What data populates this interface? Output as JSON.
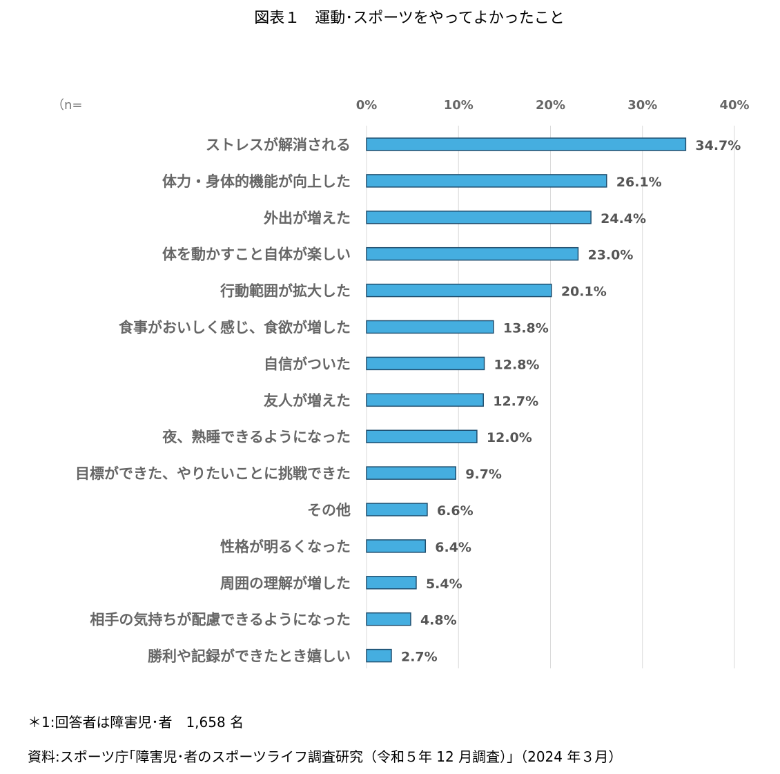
{
  "title": "図表１　運動･スポーツをやってよかったこと",
  "footnote": "＊1:回答者は障害児･者　1,658 名",
  "source": "資料:スポーツ庁｢障害児･者のスポーツライフ調査研究（令和５年 12 月調査）｣（2024 年３月）",
  "chart_data": {
    "type": "bar",
    "orientation": "horizontal",
    "n_label": "（n=",
    "xlim": [
      0,
      40
    ],
    "xticks": [
      "0%",
      "10%",
      "20%",
      "30%",
      "40%"
    ],
    "grid": true,
    "bar_color": "#45AEE0",
    "bar_edge": "#1F4E6E",
    "categories": [
      "ストレスが解消される",
      "体力・身体的機能が向上した",
      "外出が増えた",
      "体を動かすこと自体が楽しい",
      "行動範囲が拡大した",
      "食事がおいしく感じ、食欲が増した",
      "自信がついた",
      "友人が増えた",
      "夜、熟睡できるようになった",
      "目標ができた、やりたいことに挑戦できた",
      "その他",
      "性格が明るくなった",
      "周囲の理解が増した",
      "相手の気持ちが配慮できるようになった",
      "勝利や記録ができたとき嬉しい"
    ],
    "values": [
      34.7,
      26.1,
      24.4,
      23.0,
      20.1,
      13.8,
      12.8,
      12.7,
      12.0,
      9.7,
      6.6,
      6.4,
      5.4,
      4.8,
      2.7
    ],
    "labels": [
      "34.7%",
      "26.1%",
      "24.4%",
      "23.0%",
      "20.1%",
      "13.8%",
      "12.8%",
      "12.7%",
      "12.0%",
      "9.7%",
      "6.6%",
      "6.4%",
      "5.4%",
      "4.8%",
      "2.7%"
    ]
  }
}
